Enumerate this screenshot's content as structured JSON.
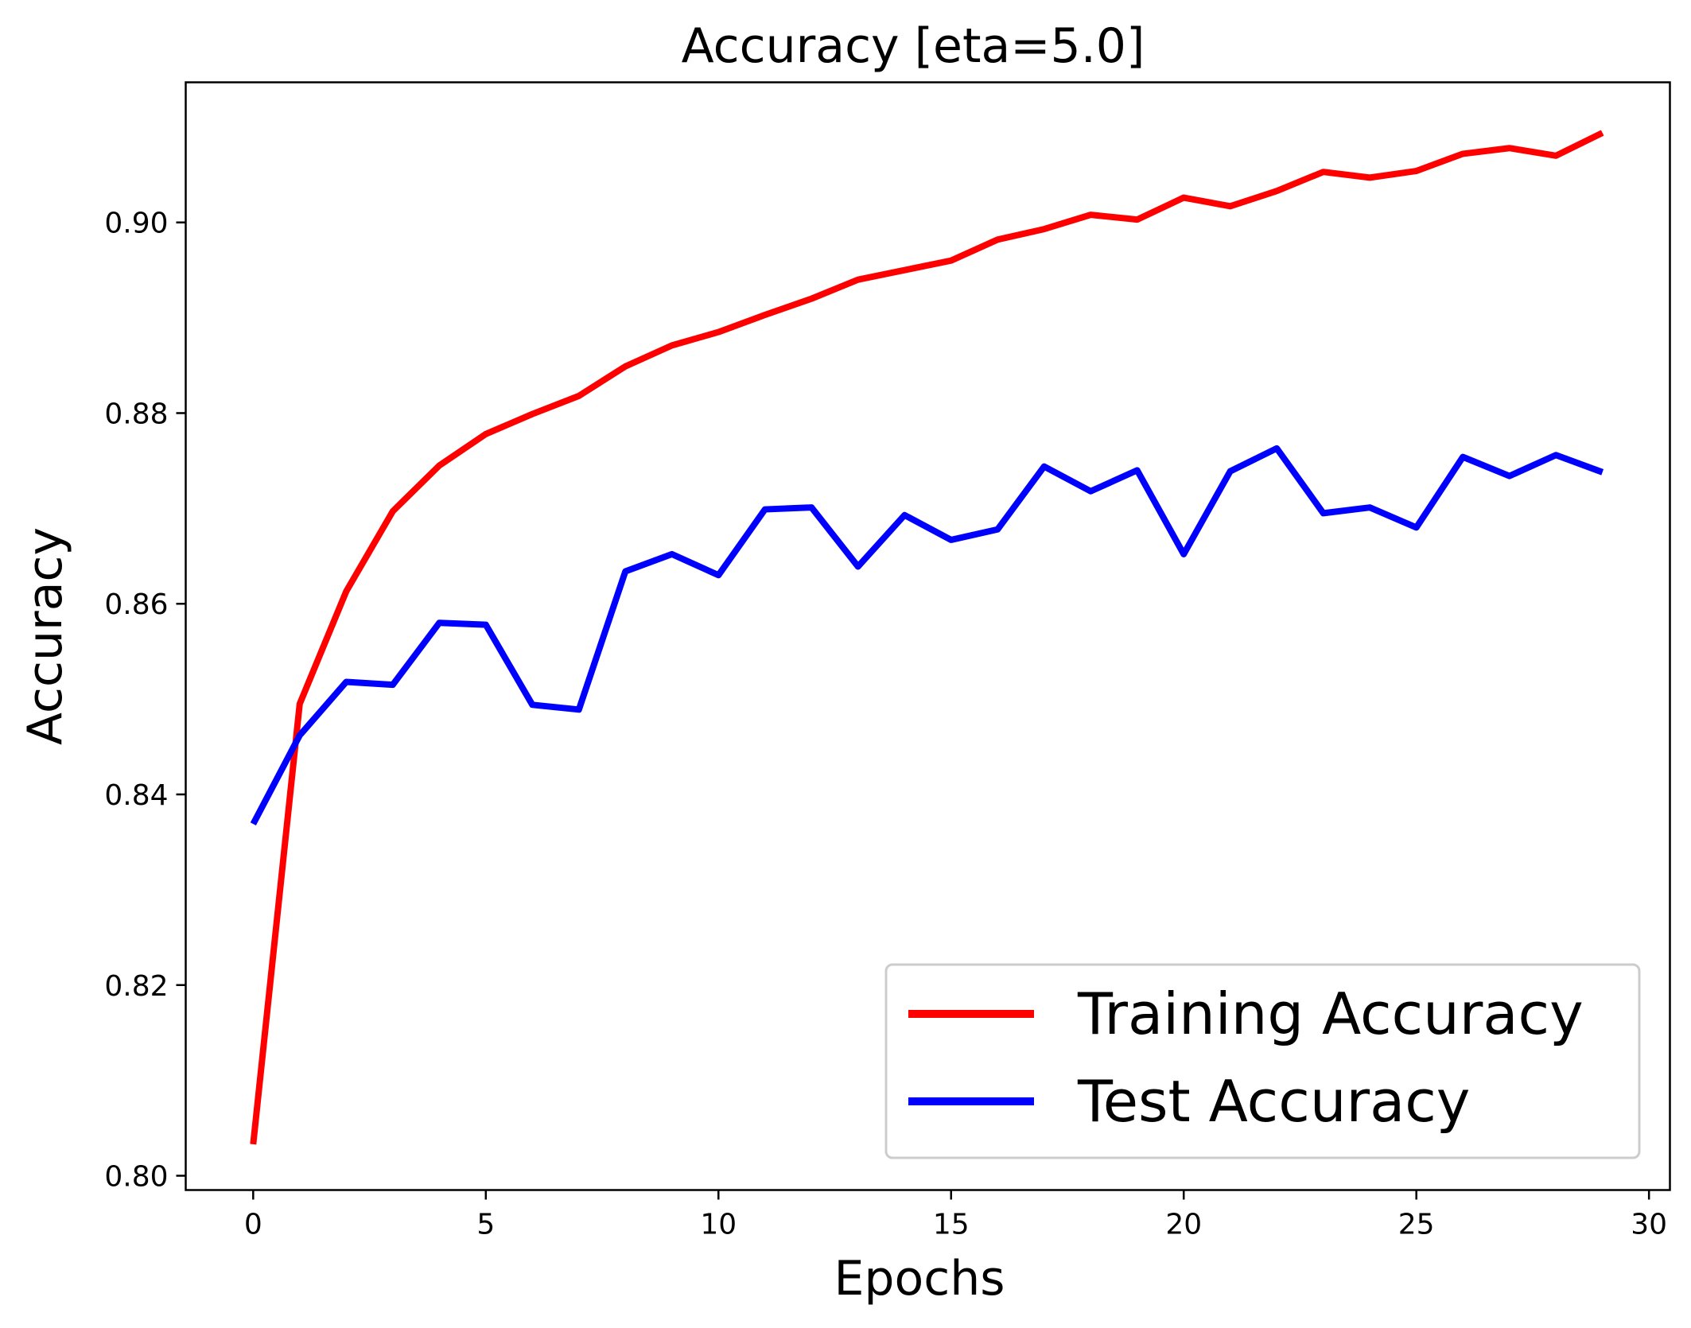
{
  "chart_data": {
    "type": "line",
    "title": "Accuracy [eta=5.0]",
    "xlabel": "Epochs",
    "ylabel": "Accuracy",
    "xlim": [
      -1.45,
      30.45
    ],
    "ylim": [
      0.7985,
      0.9147
    ],
    "x_ticks": [
      0,
      5,
      10,
      15,
      20,
      25,
      30
    ],
    "x_tick_labels": [
      "0",
      "5",
      "10",
      "15",
      "20",
      "25",
      "30"
    ],
    "y_ticks": [
      0.8,
      0.82,
      0.84,
      0.86,
      0.88,
      0.9
    ],
    "y_tick_labels": [
      "0.80",
      "0.82",
      "0.84",
      "0.86",
      "0.88",
      "0.90"
    ],
    "grid": false,
    "legend_position": "lower-right",
    "x": [
      0,
      1,
      2,
      3,
      4,
      5,
      6,
      7,
      8,
      9,
      10,
      11,
      12,
      13,
      14,
      15,
      16,
      17,
      18,
      19,
      20,
      21,
      22,
      23,
      24,
      25,
      26,
      27,
      28,
      29
    ],
    "series": [
      {
        "name": "Training Accuracy",
        "color": "#ff0000",
        "values": [
          0.8033,
          0.8495,
          0.8613,
          0.8697,
          0.8745,
          0.8778,
          0.8799,
          0.8818,
          0.8849,
          0.8871,
          0.8885,
          0.8903,
          0.892,
          0.894,
          0.895,
          0.896,
          0.8982,
          0.8993,
          0.9008,
          0.9003,
          0.9026,
          0.9017,
          0.9033,
          0.9053,
          0.9047,
          0.9054,
          0.9072,
          0.9078,
          0.907,
          0.9094
        ]
      },
      {
        "name": "Test Accuracy",
        "color": "#0000ff",
        "values": [
          0.8369,
          0.8462,
          0.8518,
          0.8515,
          0.858,
          0.8578,
          0.8494,
          0.8489,
          0.8634,
          0.8652,
          0.863,
          0.8699,
          0.8701,
          0.8639,
          0.8693,
          0.8667,
          0.8678,
          0.8744,
          0.8718,
          0.874,
          0.8652,
          0.8739,
          0.8763,
          0.8695,
          0.8701,
          0.868,
          0.8754,
          0.8734,
          0.8756,
          0.8738
        ]
      }
    ]
  }
}
